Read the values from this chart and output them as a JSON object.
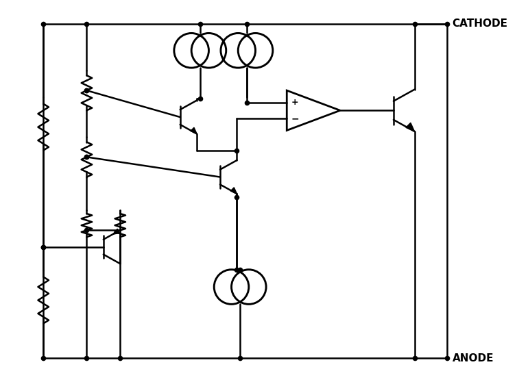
{
  "background": "#ffffff",
  "line_color": "#000000",
  "line_width": 1.8,
  "dot_size": 5.5,
  "cathode_label": "CATHODE",
  "anode_label": "ANODE",
  "figsize": [
    7.54,
    5.58
  ],
  "dpi": 100
}
